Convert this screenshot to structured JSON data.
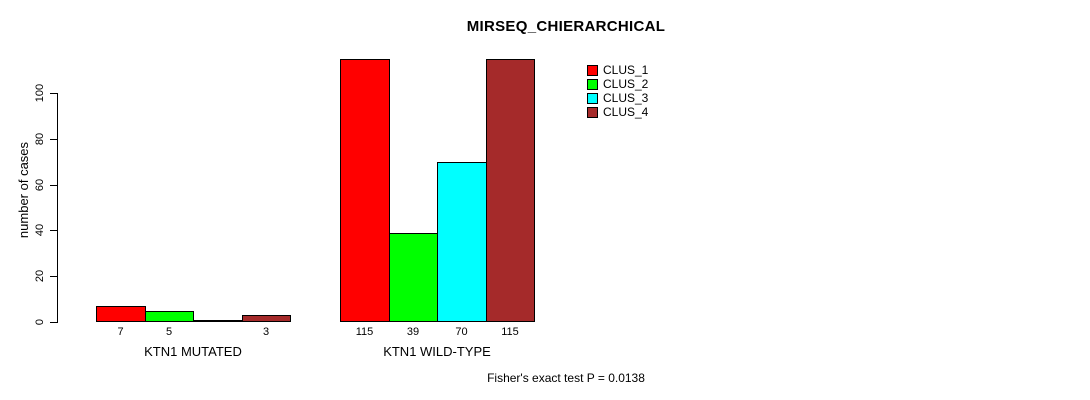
{
  "chart_data": {
    "type": "bar",
    "title": "MIRSEQ_CHIERARCHICAL",
    "ylabel": "number of cases",
    "xlabel": "",
    "ylim": [
      0,
      100
    ],
    "yticks": [
      0,
      20,
      40,
      60,
      80,
      100
    ],
    "grid": false,
    "legend_position": "inside-top-right",
    "categories": [
      "KTN1 MUTATED",
      "KTN1 WILD-TYPE"
    ],
    "series": [
      {
        "name": "CLUS_1",
        "color": "#ff0000",
        "values": [
          7,
          115
        ]
      },
      {
        "name": "CLUS_2",
        "color": "#00ff00",
        "values": [
          5,
          39
        ]
      },
      {
        "name": "CLUS_3",
        "color": "#00ffff",
        "values": [
          0,
          70
        ]
      },
      {
        "name": "CLUS_4",
        "color": "#a52a2a",
        "values": [
          3,
          115
        ]
      }
    ],
    "bar_value_labels": [
      [
        "7",
        "5",
        "",
        "3"
      ],
      [
        "115",
        "39",
        "70",
        "115"
      ]
    ],
    "annotation": "Fisher's exact test P = 0.0138"
  }
}
